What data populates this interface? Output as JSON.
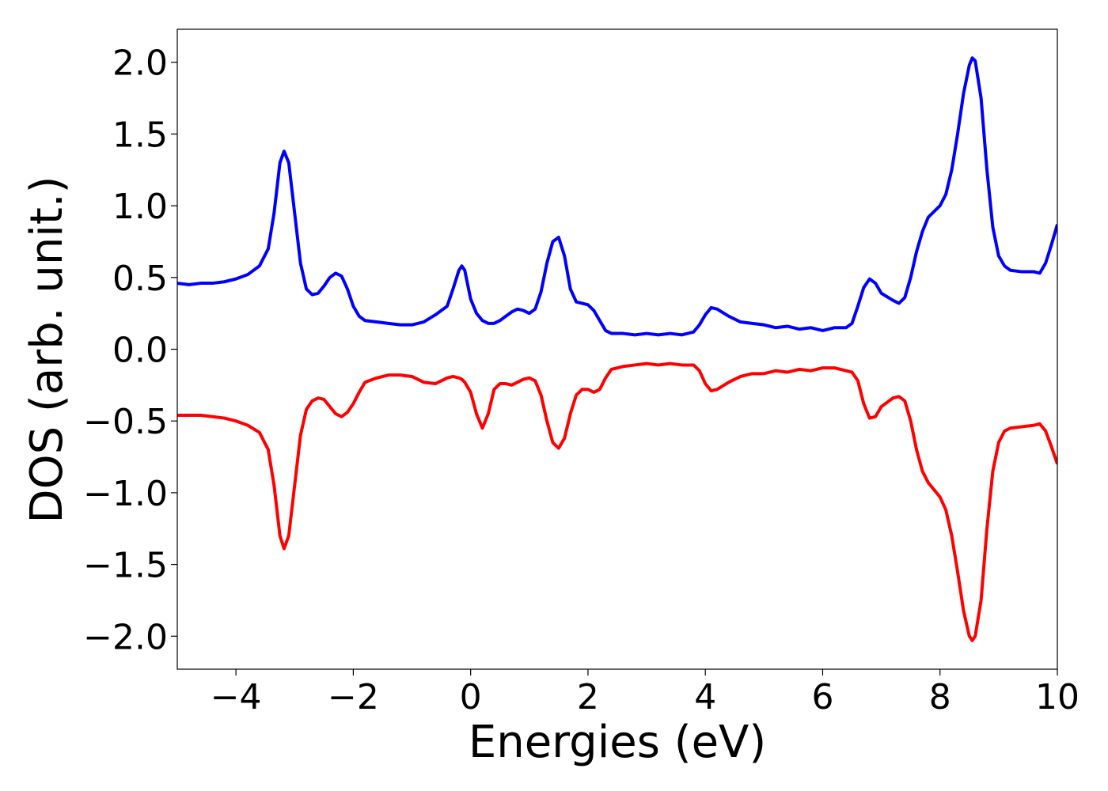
{
  "chart_data": {
    "type": "line",
    "xlabel": "Energies (eV)",
    "ylabel": "DOS (arb. unit.)",
    "x": [
      -5,
      -4.8,
      -4.6,
      -4.4,
      -4.2,
      -4,
      -3.8,
      -3.6,
      -3.45,
      -3.35,
      -3.25,
      -3.18,
      -3.1,
      -3,
      -2.9,
      -2.8,
      -2.7,
      -2.6,
      -2.5,
      -2.4,
      -2.3,
      -2.2,
      -2.1,
      -2,
      -1.9,
      -1.8,
      -1.6,
      -1.4,
      -1.2,
      -1,
      -0.8,
      -0.6,
      -0.4,
      -0.3,
      -0.2,
      -0.15,
      -0.1,
      0,
      0.1,
      0.2,
      0.3,
      0.4,
      0.5,
      0.6,
      0.7,
      0.8,
      0.9,
      1,
      1.1,
      1.2,
      1.3,
      1.4,
      1.5,
      1.6,
      1.7,
      1.8,
      1.9,
      2,
      2.1,
      2.2,
      2.3,
      2.4,
      2.6,
      2.8,
      3,
      3.2,
      3.4,
      3.6,
      3.8,
      3.9,
      4,
      4.1,
      4.2,
      4.4,
      4.6,
      4.8,
      5,
      5.2,
      5.4,
      5.6,
      5.8,
      6,
      6.2,
      6.4,
      6.5,
      6.6,
      6.7,
      6.8,
      6.9,
      7,
      7.2,
      7.3,
      7.4,
      7.5,
      7.6,
      7.7,
      7.8,
      8,
      8.1,
      8.2,
      8.3,
      8.4,
      8.5,
      8.55,
      8.6,
      8.7,
      8.8,
      8.9,
      9,
      9.1,
      9.2,
      9.4,
      9.6,
      9.7,
      9.8,
      9.9,
      10
    ],
    "series": [
      {
        "color": "#0000ff",
        "values": [
          0.46,
          0.45,
          0.46,
          0.46,
          0.47,
          0.49,
          0.52,
          0.58,
          0.7,
          0.95,
          1.3,
          1.38,
          1.3,
          0.95,
          0.6,
          0.42,
          0.38,
          0.39,
          0.44,
          0.5,
          0.53,
          0.51,
          0.42,
          0.3,
          0.23,
          0.2,
          0.19,
          0.18,
          0.17,
          0.17,
          0.19,
          0.24,
          0.3,
          0.42,
          0.55,
          0.58,
          0.55,
          0.35,
          0.25,
          0.2,
          0.18,
          0.18,
          0.2,
          0.23,
          0.26,
          0.28,
          0.27,
          0.25,
          0.28,
          0.4,
          0.6,
          0.75,
          0.78,
          0.65,
          0.42,
          0.33,
          0.32,
          0.31,
          0.27,
          0.2,
          0.13,
          0.11,
          0.11,
          0.1,
          0.11,
          0.1,
          0.11,
          0.1,
          0.12,
          0.17,
          0.24,
          0.29,
          0.28,
          0.23,
          0.19,
          0.18,
          0.17,
          0.15,
          0.16,
          0.14,
          0.15,
          0.13,
          0.15,
          0.15,
          0.18,
          0.3,
          0.43,
          0.49,
          0.46,
          0.39,
          0.34,
          0.32,
          0.36,
          0.5,
          0.68,
          0.82,
          0.92,
          1.0,
          1.08,
          1.25,
          1.5,
          1.78,
          1.98,
          2.03,
          2.01,
          1.75,
          1.25,
          0.85,
          0.65,
          0.58,
          0.55,
          0.54,
          0.54,
          0.53,
          0.6,
          0.73,
          0.87
        ]
      },
      {
        "color": "#ff0000",
        "values": [
          -0.46,
          -0.46,
          -0.46,
          -0.47,
          -0.48,
          -0.5,
          -0.53,
          -0.58,
          -0.7,
          -0.95,
          -1.3,
          -1.39,
          -1.3,
          -0.95,
          -0.6,
          -0.42,
          -0.36,
          -0.34,
          -0.35,
          -0.4,
          -0.45,
          -0.47,
          -0.44,
          -0.38,
          -0.3,
          -0.23,
          -0.2,
          -0.18,
          -0.18,
          -0.19,
          -0.23,
          -0.24,
          -0.2,
          -0.19,
          -0.2,
          -0.21,
          -0.23,
          -0.3,
          -0.45,
          -0.55,
          -0.45,
          -0.28,
          -0.24,
          -0.24,
          -0.25,
          -0.23,
          -0.21,
          -0.2,
          -0.22,
          -0.32,
          -0.5,
          -0.65,
          -0.69,
          -0.62,
          -0.45,
          -0.32,
          -0.28,
          -0.28,
          -0.3,
          -0.28,
          -0.2,
          -0.14,
          -0.12,
          -0.11,
          -0.1,
          -0.11,
          -0.1,
          -0.11,
          -0.11,
          -0.15,
          -0.24,
          -0.29,
          -0.28,
          -0.23,
          -0.19,
          -0.17,
          -0.17,
          -0.15,
          -0.16,
          -0.14,
          -0.15,
          -0.13,
          -0.13,
          -0.15,
          -0.16,
          -0.22,
          -0.38,
          -0.48,
          -0.47,
          -0.4,
          -0.34,
          -0.33,
          -0.36,
          -0.5,
          -0.7,
          -0.85,
          -0.93,
          -1.03,
          -1.12,
          -1.3,
          -1.55,
          -1.82,
          -2.0,
          -2.03,
          -2.0,
          -1.75,
          -1.25,
          -0.85,
          -0.65,
          -0.57,
          -0.55,
          -0.54,
          -0.53,
          -0.52,
          -0.57,
          -0.68,
          -0.8
        ]
      }
    ],
    "xlim": [
      -5,
      10
    ],
    "xticks": [
      {
        "value": -4,
        "label": "−4"
      },
      {
        "value": -2,
        "label": "−2"
      },
      0,
      2,
      4,
      6,
      8,
      10
    ],
    "ylim": [
      -2.23,
      2.23
    ],
    "yticks": [
      {
        "value": -2,
        "label": "−2.0"
      },
      {
        "value": -1.5,
        "label": "−1.5"
      },
      {
        "value": -1,
        "label": "−1.0"
      },
      {
        "value": -0.5,
        "label": "−0.5"
      },
      {
        "value": 0,
        "label": "0.0"
      },
      0.5,
      {
        "value": 1,
        "label": "1.0"
      },
      1.5,
      {
        "value": 2,
        "label": "2.0"
      }
    ],
    "grid": false
  }
}
